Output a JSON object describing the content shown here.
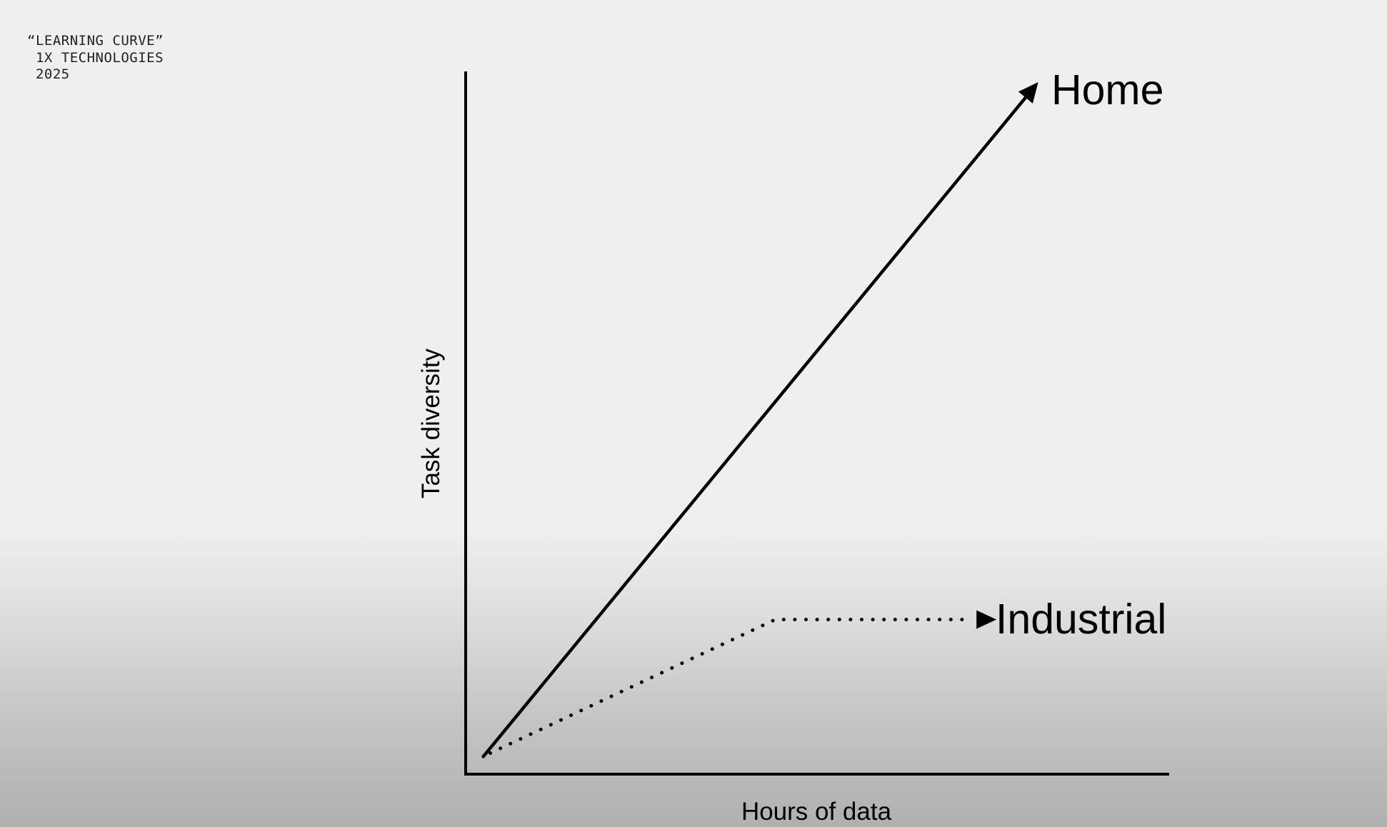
{
  "caption": {
    "line1": "“LEARNING CURVE”",
    "line2": " 1X TECHNOLOGIES",
    "line3": " 2025"
  },
  "chart_data": {
    "type": "line",
    "title": "",
    "xlabel": "Hours of data",
    "ylabel": "Task diversity",
    "xlim": [
      0,
      100
    ],
    "ylim": [
      0,
      100
    ],
    "grid": false,
    "legend": "none",
    "series": [
      {
        "name": "Home",
        "style": "solid",
        "color": "#000000",
        "x": [
          2.5,
          81
        ],
        "y": [
          2.5,
          98
        ]
      },
      {
        "name": "Industrial",
        "style": "dotted",
        "color": "#000000",
        "x": [
          3.5,
          44,
          72
        ],
        "y": [
          3,
          22,
          22
        ]
      }
    ]
  }
}
